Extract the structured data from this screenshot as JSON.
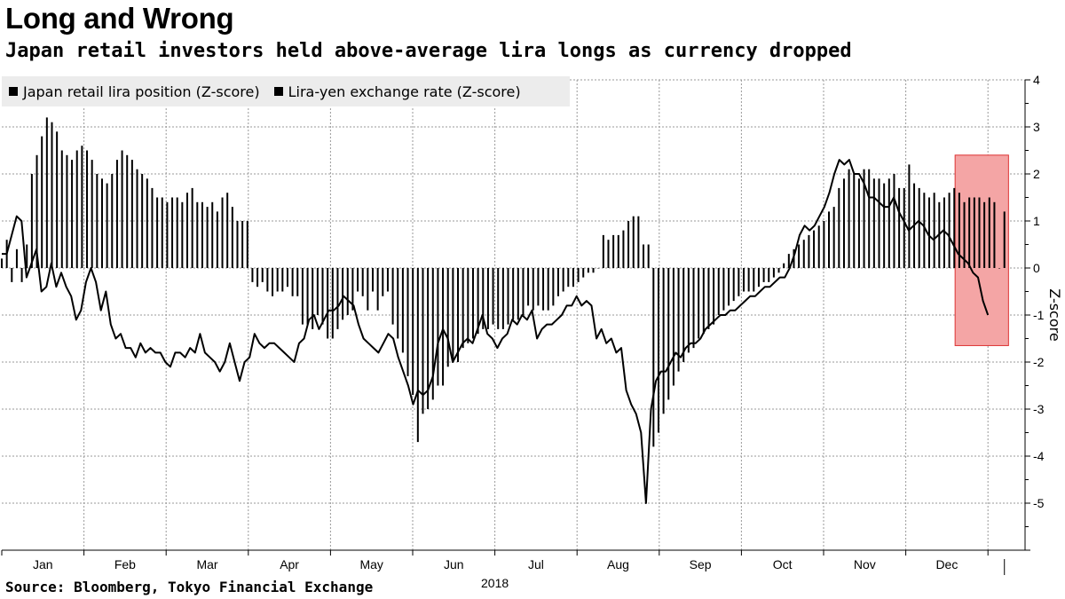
{
  "title": "Long and Wrong",
  "subtitle": "Japan retail investors held above-average lira longs as currency dropped",
  "source": "Source: Bloomberg, Tokyo Financial Exchange",
  "chart_data": {
    "type": "bar",
    "title": "Long and Wrong",
    "subtitle": "Japan retail investors held above-average lira longs as currency dropped",
    "xlabel": "2018",
    "ylabel": "Z-score",
    "ylim": [
      -6,
      4
    ],
    "yticks": [
      4,
      3,
      2,
      1,
      0,
      -1,
      -2,
      -3,
      -4,
      -5
    ],
    "ytick_labels": [
      "4",
      "3",
      "2",
      "1",
      "0",
      "-1",
      "-2",
      "-3",
      "-4",
      "-5"
    ],
    "x_axis_label": "2018",
    "month_labels": [
      "Jan",
      "Feb",
      "Mar",
      "Apr",
      "May",
      "Jun",
      "Jul",
      "Aug",
      "Sep",
      "Oct",
      "Nov",
      "Dec"
    ],
    "legend_position": "top-left",
    "grid": true,
    "highlight_box": {
      "x_range_months": [
        11.6,
        12.25
      ],
      "y_range": [
        -1.65,
        2.4
      ],
      "color": "#f4a5a5"
    },
    "series": [
      {
        "name": "Japan retail lira position (Z-score)",
        "kind": "bar",
        "color": "#000000",
        "values": [
          0.2,
          0.6,
          -0.3,
          0.4,
          -0.3,
          0.5,
          2.0,
          2.4,
          2.8,
          3.2,
          3.1,
          2.9,
          2.5,
          2.4,
          2.3,
          2.5,
          2.6,
          2.5,
          2.3,
          2.0,
          1.9,
          1.8,
          2.0,
          2.3,
          2.5,
          2.4,
          2.3,
          2.1,
          2.0,
          1.9,
          1.7,
          1.5,
          1.5,
          1.4,
          1.5,
          1.5,
          1.4,
          1.6,
          1.7,
          1.4,
          1.4,
          1.3,
          1.4,
          1.2,
          1.5,
          1.6,
          1.3,
          1.0,
          1.0,
          1.0,
          -0.3,
          -0.4,
          -0.3,
          -0.5,
          -0.6,
          -0.5,
          -0.5,
          -0.4,
          -0.6,
          -0.6,
          -1.2,
          -1.2,
          -1.3,
          -1.0,
          -1.2,
          -1.5,
          -1.5,
          -1.3,
          -1.1,
          -1.0,
          -0.9,
          -0.5,
          -0.6,
          -0.9,
          -0.5,
          -0.9,
          -0.6,
          -0.5,
          -1.2,
          -1.5,
          -1.8,
          -2.3,
          -2.7,
          -3.7,
          -3.1,
          -3.0,
          -2.8,
          -2.5,
          -2.5,
          -2.1,
          -2.0,
          -2.0,
          -1.7,
          -1.6,
          -1.5,
          -1.4,
          -1.3,
          -1.3,
          -1.2,
          -1.3,
          -1.3,
          -1.2,
          -1.1,
          -1.1,
          -1.0,
          -0.8,
          -0.9,
          -0.8,
          -0.9,
          -0.9,
          -0.8,
          -0.6,
          -0.5,
          -0.4,
          -0.4,
          -0.3,
          -0.2,
          -0.1,
          -0.1,
          0.0,
          0.7,
          0.6,
          0.7,
          0.7,
          0.8,
          1.0,
          1.1,
          1.1,
          0.5,
          0.5,
          -3.8,
          -3.5,
          -3.1,
          -2.8,
          -2.5,
          -2.2,
          -2.0,
          -1.8,
          -1.7,
          -1.5,
          -1.4,
          -1.3,
          -1.2,
          -1.0,
          -0.9,
          -0.8,
          -0.7,
          -0.6,
          -0.5,
          -0.5,
          -0.5,
          -0.4,
          -0.3,
          -0.3,
          -0.2,
          -0.1,
          0.1,
          0.3,
          0.4,
          0.5,
          0.6,
          0.7,
          0.8,
          0.9,
          1.0,
          1.2,
          1.3,
          1.7,
          1.9,
          2.1,
          2.0,
          1.9,
          2.1,
          2.1,
          1.9,
          1.9,
          1.8,
          1.9,
          2.0,
          1.7,
          1.7,
          2.2,
          1.8,
          1.7,
          1.6,
          1.5,
          1.6,
          1.4,
          1.5,
          1.6,
          1.7,
          1.6,
          1.4,
          1.5,
          1.5,
          1.5,
          1.4,
          1.5,
          1.4,
          0.0,
          1.2
        ]
      },
      {
        "name": "Lira-yen exchange rate (Z-score)",
        "kind": "line",
        "color": "#000000",
        "values": [
          0.3,
          0.3,
          0.7,
          1.1,
          1.0,
          -0.2,
          0.1,
          0.4,
          -0.5,
          -0.4,
          0.1,
          -0.4,
          -0.1,
          -0.4,
          -0.6,
          -1.1,
          -0.9,
          -0.3,
          0.0,
          -0.3,
          -0.9,
          -0.5,
          -1.2,
          -1.5,
          -1.4,
          -1.7,
          -1.7,
          -1.9,
          -1.6,
          -1.8,
          -1.7,
          -1.8,
          -1.8,
          -2.0,
          -2.1,
          -1.8,
          -1.8,
          -1.9,
          -1.7,
          -1.8,
          -1.4,
          -1.8,
          -1.9,
          -2.0,
          -2.2,
          -2.0,
          -1.6,
          -2.0,
          -2.4,
          -2.0,
          -1.9,
          -1.4,
          -1.6,
          -1.7,
          -1.6,
          -1.6,
          -1.7,
          -1.8,
          -1.9,
          -2.0,
          -1.6,
          -1.5,
          -1.1,
          -1.0,
          -1.3,
          -1.1,
          -0.9,
          -0.9,
          -0.8,
          -0.6,
          -0.7,
          -0.8,
          -1.2,
          -1.5,
          -1.6,
          -1.7,
          -1.8,
          -1.6,
          -1.4,
          -1.5,
          -1.9,
          -2.2,
          -2.5,
          -2.9,
          -2.6,
          -2.7,
          -2.6,
          -2.3,
          -1.6,
          -1.3,
          -1.5,
          -2.0,
          -1.8,
          -1.6,
          -1.5,
          -1.6,
          -1.3,
          -1.0,
          -1.4,
          -1.5,
          -1.7,
          -1.5,
          -1.4,
          -1.1,
          -1.2,
          -1.0,
          -1.1,
          -0.9,
          -1.5,
          -1.3,
          -1.2,
          -1.2,
          -1.1,
          -1.0,
          -0.8,
          -0.8,
          -0.6,
          -0.8,
          -0.7,
          -0.8,
          -1.5,
          -1.3,
          -1.6,
          -1.5,
          -1.8,
          -1.7,
          -2.6,
          -2.9,
          -3.1,
          -3.5,
          -5.0,
          -3.0,
          -2.4,
          -2.2,
          -2.2,
          -2.0,
          -1.8,
          -1.9,
          -1.7,
          -1.6,
          -1.6,
          -1.5,
          -1.3,
          -1.2,
          -1.1,
          -1.0,
          -1.0,
          -0.9,
          -0.9,
          -0.8,
          -0.7,
          -0.6,
          -0.6,
          -0.5,
          -0.4,
          -0.4,
          -0.3,
          -0.2,
          -0.2,
          0.0,
          0.3,
          0.7,
          0.9,
          0.8,
          0.9,
          1.1,
          1.3,
          1.6,
          2.0,
          2.3,
          2.2,
          2.3,
          2.0,
          2.0,
          1.8,
          1.5,
          1.5,
          1.4,
          1.3,
          1.3,
          1.5,
          1.2,
          1.0,
          0.8,
          0.9,
          1.0,
          0.9,
          0.7,
          0.6,
          0.7,
          0.8,
          0.7,
          0.5,
          0.3,
          0.2,
          0.1,
          -0.1,
          -0.2,
          -0.7,
          -1.0
        ]
      }
    ]
  }
}
